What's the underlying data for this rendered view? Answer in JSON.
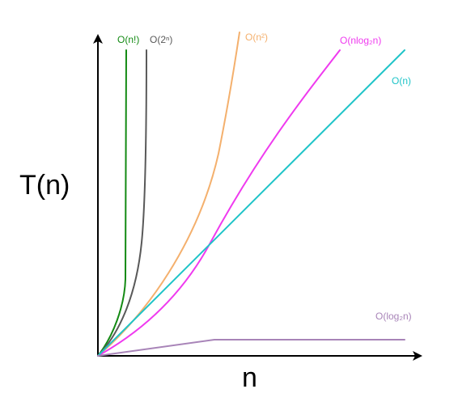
{
  "axes": {
    "y_label": "T(n)",
    "x_label": "n"
  },
  "curves": [
    {
      "id": "factorial",
      "label": "O(n!)",
      "color": "#138a13"
    },
    {
      "id": "exponential",
      "label": "O(2ⁿ)",
      "color": "#595959"
    },
    {
      "id": "quadratic",
      "label": "O(n²)",
      "color": "#f4b06d"
    },
    {
      "id": "nlogn",
      "label": "O(nlog₂n)",
      "color": "#ef3aef"
    },
    {
      "id": "linear",
      "label": "O(n)",
      "color": "#1fc4c8"
    },
    {
      "id": "log",
      "label": "O(log₂n)",
      "color": "#a884b8"
    }
  ]
}
